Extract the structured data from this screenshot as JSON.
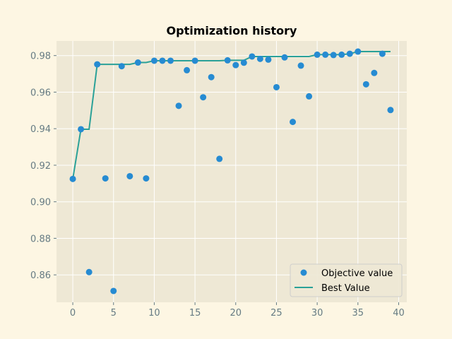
{
  "chart_data": {
    "type": "scatter",
    "title": "Optimization history",
    "xlabel": "",
    "ylabel": "",
    "xlim": [
      -2,
      41
    ],
    "ylim": [
      0.845,
      0.988
    ],
    "xticks": [
      0,
      5,
      10,
      15,
      20,
      25,
      30,
      35,
      40
    ],
    "yticks": [
      0.86,
      0.88,
      0.9,
      0.92,
      0.94,
      0.96,
      0.98
    ],
    "grid": true,
    "legend_position": "lower-right",
    "colors": {
      "figure_bg": "#fdf6e3",
      "axes_bg": "#eee8d5",
      "grid": "#ffffff",
      "points": "#268bd2",
      "best_line": "#2aa198",
      "tick_text": "#657b83"
    },
    "series": [
      {
        "name": "Objective value",
        "kind": "scatter",
        "x": [
          0,
          1,
          2,
          3,
          4,
          5,
          6,
          7,
          8,
          9,
          10,
          11,
          12,
          13,
          14,
          15,
          16,
          17,
          18,
          19,
          20,
          21,
          22,
          23,
          24,
          25,
          26,
          27,
          28,
          29,
          30,
          31,
          32,
          33,
          34,
          35,
          36,
          37,
          38,
          39
        ],
        "y": [
          0.9125,
          0.9397,
          0.8615,
          0.9752,
          0.9128,
          0.8512,
          0.9742,
          0.914,
          0.9762,
          0.9128,
          0.9772,
          0.9772,
          0.9772,
          0.9525,
          0.972,
          0.9772,
          0.9572,
          0.9682,
          0.9235,
          0.9774,
          0.9748,
          0.9761,
          0.9795,
          0.9782,
          0.9778,
          0.9627,
          0.979,
          0.9437,
          0.9745,
          0.9577,
          0.9805,
          0.9805,
          0.9803,
          0.9805,
          0.981,
          0.9822,
          0.9643,
          0.9705,
          0.981,
          0.9502
        ]
      },
      {
        "name": "Best Value",
        "kind": "line",
        "x": [
          0,
          1,
          2,
          3,
          4,
          5,
          6,
          7,
          8,
          9,
          10,
          11,
          12,
          13,
          14,
          15,
          16,
          17,
          18,
          19,
          20,
          21,
          22,
          23,
          24,
          25,
          26,
          27,
          28,
          29,
          30,
          31,
          32,
          33,
          34,
          35,
          36,
          37,
          38,
          39
        ],
        "y": [
          0.9125,
          0.9397,
          0.9397,
          0.9752,
          0.9752,
          0.9752,
          0.9752,
          0.9752,
          0.9762,
          0.9762,
          0.9772,
          0.9772,
          0.9772,
          0.9772,
          0.9772,
          0.9772,
          0.9772,
          0.9772,
          0.9772,
          0.9774,
          0.9774,
          0.9774,
          0.9795,
          0.9795,
          0.9795,
          0.9795,
          0.9795,
          0.9795,
          0.9795,
          0.9795,
          0.9805,
          0.9805,
          0.9805,
          0.9805,
          0.981,
          0.9822,
          0.9822,
          0.9822,
          0.9822,
          0.9822
        ]
      }
    ]
  }
}
